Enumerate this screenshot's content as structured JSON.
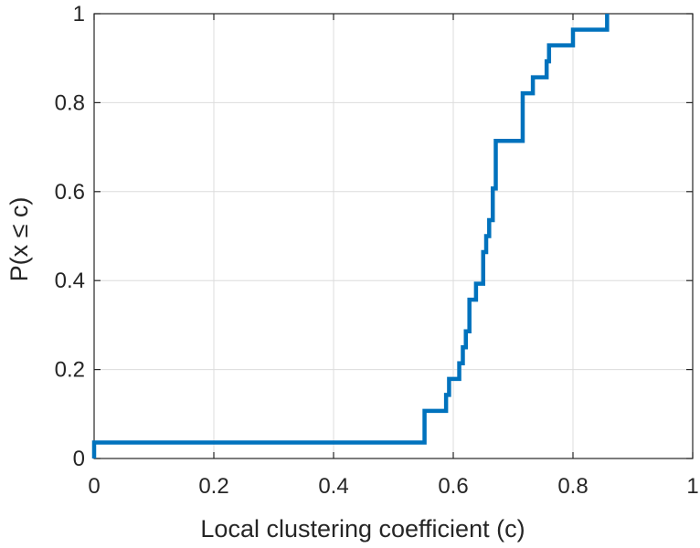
{
  "chart_data": {
    "type": "line",
    "step": true,
    "xlabel": "Local clustering coefficient (c)",
    "ylabel": "P(x ≤ c)",
    "xlim": [
      0,
      1
    ],
    "ylim": [
      0,
      1
    ],
    "grid": true,
    "legend": "none",
    "xticks": [
      0,
      0.2,
      0.4,
      0.6,
      0.8,
      1
    ],
    "xtick_labels": [
      "0",
      "0.2",
      "0.4",
      "0.6",
      "0.8",
      "1"
    ],
    "yticks": [
      0,
      0.2,
      0.4,
      0.6,
      0.8,
      1
    ],
    "ytick_labels": [
      "0",
      "0.2",
      "0.4",
      "0.6",
      "0.8",
      "1"
    ],
    "series": [
      {
        "color": "#0072BD",
        "x": [
          0,
          0,
          0.552,
          0.552,
          0.588,
          0.593,
          0.61,
          0.616,
          0.621,
          0.627,
          0.638,
          0.65,
          0.655,
          0.66,
          0.666,
          0.671,
          0.683,
          0.716,
          0.733,
          0.756,
          0.76,
          0.8,
          0.857
        ],
        "y": [
          0,
          0.036,
          0.036,
          0.107,
          0.143,
          0.179,
          0.214,
          0.25,
          0.286,
          0.357,
          0.393,
          0.464,
          0.5,
          0.536,
          0.607,
          0.714,
          0.714,
          0.821,
          0.857,
          0.893,
          0.929,
          0.964,
          1.0
        ]
      }
    ]
  }
}
